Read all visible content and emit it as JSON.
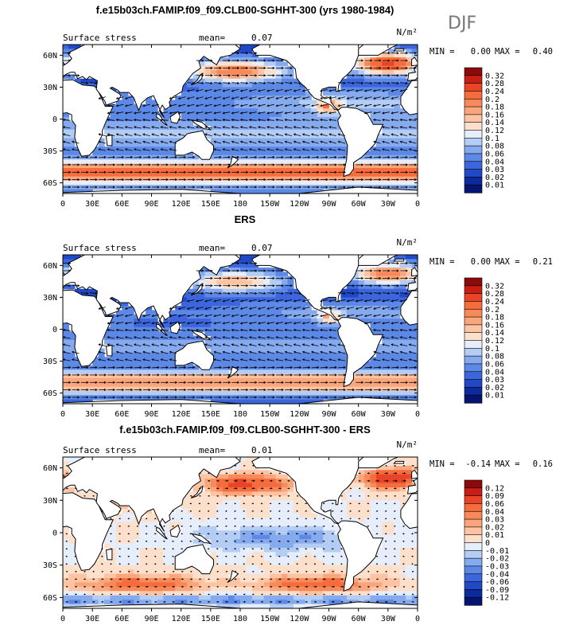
{
  "season": "DJF",
  "chart_data": [
    {
      "type": "heatmap",
      "title": "f.e15b03ch.FAMIP.f09_f09.CLB00-SGHHT-300 (yrs 1980-1984)",
      "left_label": "Surface stress",
      "mean_label": "mean=",
      "mean_value": "0.07",
      "units": "N/m²",
      "min_label": "MIN =",
      "min_value": "0.00",
      "max_label": "MAX =",
      "max_value": "0.40",
      "x_ticks": [
        "0",
        "30E",
        "60E",
        "90E",
        "120E",
        "150E",
        "180",
        "150W",
        "120W",
        "90W",
        "60W",
        "30W",
        "0"
      ],
      "y_ticks": [
        "60N",
        "30N",
        "0",
        "30S",
        "60S"
      ],
      "colorbar_levels": [
        "0.32",
        "0.28",
        "0.24",
        "0.2",
        "0.18",
        "0.16",
        "0.14",
        "0.12",
        "0.1",
        "0.08",
        "0.06",
        "0.04",
        "0.03",
        "0.02",
        "0.01"
      ],
      "colorbar_colors": [
        "#8c0a0a",
        "#c81e14",
        "#e84528",
        "#f56d3e",
        "#f8895a",
        "#faa67c",
        "#fcc4a2",
        "#fde0cc",
        "#e6eefc",
        "#b4cdf5",
        "#86aaee",
        "#5c88e6",
        "#3c66dc",
        "#2148c6",
        "#0c2a9c",
        "#041470"
      ],
      "field": "total"
    },
    {
      "type": "heatmap",
      "title": "ERS",
      "left_label": "Surface stress",
      "mean_label": "mean=",
      "mean_value": "0.07",
      "units": "N/m²",
      "min_label": "MIN =",
      "min_value": "0.00",
      "max_label": "MAX =",
      "max_value": "0.21",
      "x_ticks": [
        "0",
        "30E",
        "60E",
        "90E",
        "120E",
        "150E",
        "180",
        "150W",
        "120W",
        "90W",
        "60W",
        "30W",
        "0"
      ],
      "y_ticks": [
        "60N",
        "30N",
        "0",
        "30S",
        "60S"
      ],
      "colorbar_levels": [
        "0.32",
        "0.28",
        "0.24",
        "0.2",
        "0.18",
        "0.16",
        "0.14",
        "0.12",
        "0.1",
        "0.08",
        "0.06",
        "0.04",
        "0.03",
        "0.02",
        "0.01"
      ],
      "colorbar_colors": [
        "#8c0a0a",
        "#c81e14",
        "#e84528",
        "#f56d3e",
        "#f8895a",
        "#faa67c",
        "#fcc4a2",
        "#fde0cc",
        "#e6eefc",
        "#b4cdf5",
        "#86aaee",
        "#5c88e6",
        "#3c66dc",
        "#2148c6",
        "#0c2a9c",
        "#041470"
      ],
      "field": "obs"
    },
    {
      "type": "heatmap",
      "title": "f.e15b03ch.FAMIP.f09_f09.CLB00-SGHHT-300 - ERS",
      "left_label": "Surface stress",
      "mean_label": "mean=",
      "mean_value": "0.01",
      "units": "N/m²",
      "min_label": "MIN =",
      "min_value": "-0.14",
      "max_label": "MAX =",
      "max_value": "0.16",
      "x_ticks": [
        "0",
        "30E",
        "60E",
        "90E",
        "120E",
        "150E",
        "180",
        "150W",
        "120W",
        "90W",
        "60W",
        "30W",
        "0"
      ],
      "y_ticks": [
        "60N",
        "30N",
        "0",
        "30S",
        "60S"
      ],
      "colorbar_levels": [
        "0.12",
        "0.09",
        "0.06",
        "0.04",
        "0.03",
        "0.02",
        "0.01",
        "0",
        "-0.01",
        "-0.02",
        "-0.03",
        "-0.04",
        "-0.06",
        "-0.09",
        "-0.12"
      ],
      "colorbar_colors": [
        "#8c0a0a",
        "#c81e14",
        "#e84528",
        "#f56d3e",
        "#f8895a",
        "#faa67c",
        "#fcc4a2",
        "#fde0cc",
        "#e6eefc",
        "#b4cdf5",
        "#86aaee",
        "#5c88e6",
        "#3c66dc",
        "#2148c6",
        "#0c2a9c",
        "#041470"
      ],
      "field": "diff"
    }
  ]
}
